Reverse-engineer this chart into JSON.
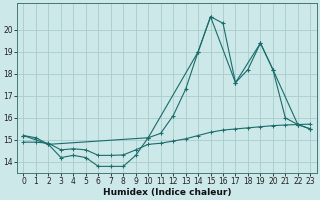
{
  "xlabel": "Humidex (Indice chaleur)",
  "background_color": "#cce8e8",
  "grid_color": "#aacccc",
  "line_color": "#1a6b6b",
  "xlim": [
    -0.5,
    23.5
  ],
  "ylim": [
    13.5,
    21.2
  ],
  "xticks": [
    0,
    1,
    2,
    3,
    4,
    5,
    6,
    7,
    8,
    9,
    10,
    11,
    12,
    13,
    14,
    15,
    16,
    17,
    18,
    19,
    20,
    21,
    22,
    23
  ],
  "yticks": [
    14,
    15,
    16,
    17,
    18,
    19,
    20
  ],
  "series_jagged_x": [
    0,
    1,
    2,
    3,
    4,
    5,
    6,
    7,
    8,
    9,
    10,
    11,
    12,
    13,
    14,
    15,
    16,
    17,
    18,
    19,
    20,
    21,
    22,
    23
  ],
  "series_jagged_y": [
    15.2,
    15.1,
    14.8,
    14.2,
    14.3,
    14.2,
    13.8,
    13.8,
    13.8,
    14.3,
    15.1,
    15.3,
    16.1,
    17.3,
    19.0,
    20.6,
    20.3,
    17.6,
    18.2,
    19.4,
    18.2,
    16.0,
    15.7,
    15.5
  ],
  "series_envelope_x": [
    0,
    2,
    10,
    14,
    15,
    17,
    19,
    20,
    22,
    23
  ],
  "series_envelope_y": [
    15.2,
    14.8,
    15.1,
    19.0,
    20.6,
    17.6,
    19.4,
    18.2,
    15.7,
    15.5
  ],
  "series_flat_x": [
    0,
    1,
    2,
    3,
    4,
    5,
    6,
    7,
    8,
    9,
    10,
    11,
    12,
    13,
    14,
    15,
    16,
    17,
    18,
    19,
    20,
    21,
    22,
    23
  ],
  "series_flat_y": [
    14.9,
    14.9,
    14.85,
    14.55,
    14.6,
    14.55,
    14.3,
    14.3,
    14.32,
    14.55,
    14.8,
    14.85,
    14.95,
    15.05,
    15.2,
    15.35,
    15.45,
    15.5,
    15.55,
    15.6,
    15.65,
    15.68,
    15.7,
    15.72
  ],
  "xlabel_fontsize": 6.5,
  "tick_fontsize": 5.5
}
